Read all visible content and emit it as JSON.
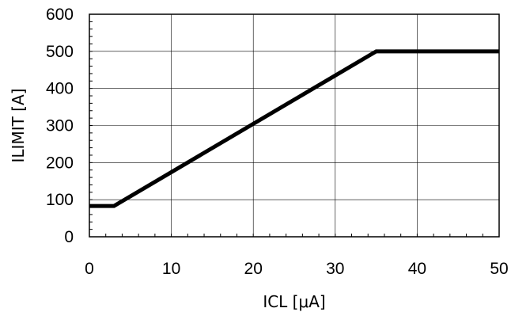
{
  "chart_data": {
    "type": "line",
    "title": "",
    "xlabel": "ICL [μA]",
    "ylabel": "ILIMIT [A]",
    "xlim": [
      0,
      50
    ],
    "ylim": [
      0,
      600
    ],
    "x_ticks": [
      "0",
      "10",
      "20",
      "30",
      "40",
      "50"
    ],
    "y_ticks": [
      "0",
      "100",
      "200",
      "300",
      "400",
      "500",
      "600"
    ],
    "grid": true,
    "series": [
      {
        "x": [
          0,
          3,
          35,
          50
        ],
        "y": [
          83,
          83,
          500,
          500
        ]
      }
    ]
  }
}
